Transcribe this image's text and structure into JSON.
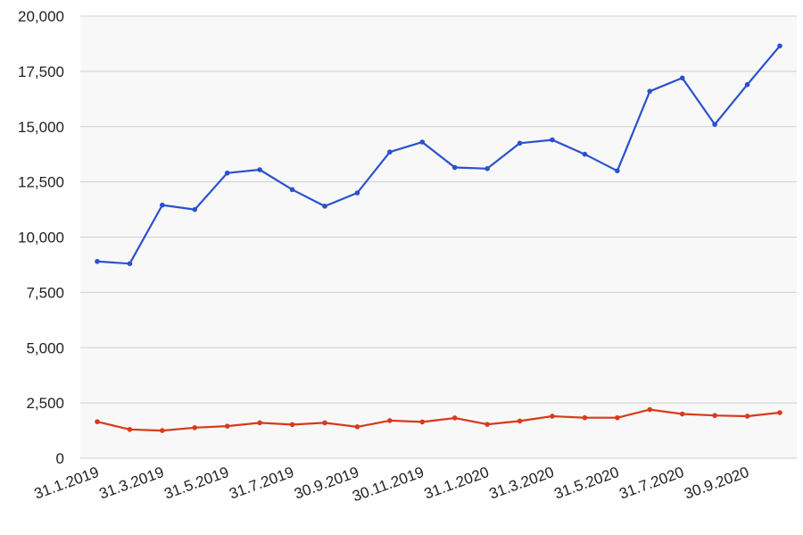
{
  "chart_data": {
    "type": "line",
    "x": [
      "31.1.2019",
      "28.2.2019",
      "31.3.2019",
      "30.4.2019",
      "31.5.2019",
      "30.6.2019",
      "31.7.2019",
      "31.8.2019",
      "30.9.2019",
      "31.10.2019",
      "30.11.2019",
      "31.12.2019",
      "31.1.2020",
      "29.2.2020",
      "31.3.2020",
      "30.4.2020",
      "31.5.2020",
      "30.6.2020",
      "31.7.2020",
      "31.8.2020",
      "30.9.2020",
      "31.10.2020"
    ],
    "x_tick_labels": [
      "31.1.2019",
      "31.3.2019",
      "31.5.2019",
      "31.7.2019",
      "30.9.2019",
      "30.11.2019",
      "31.1.2020",
      "31.3.2020",
      "31.5.2020",
      "31.7.2020",
      "30.9.2020"
    ],
    "y_tick_labels": [
      "0",
      "2,500",
      "5,000",
      "7,500",
      "10,000",
      "12,500",
      "15,000",
      "17,500",
      "20,000"
    ],
    "ylim": [
      0,
      20000
    ],
    "series": [
      {
        "color": "#2a52cc",
        "values": [
          8900,
          8800,
          11450,
          11250,
          12900,
          13050,
          12150,
          11400,
          12000,
          13850,
          14300,
          13150,
          13100,
          14250,
          14400,
          13750,
          13000,
          16600,
          17200,
          15100,
          16900,
          18650
        ]
      },
      {
        "color": "#d93a1a",
        "values": [
          1650,
          1300,
          1250,
          1380,
          1450,
          1600,
          1520,
          1600,
          1420,
          1700,
          1640,
          1820,
          1530,
          1680,
          1900,
          1830,
          1830,
          2200,
          2000,
          1930,
          1900,
          2060
        ]
      }
    ],
    "grid": true,
    "plot_background": "#f8f8f8",
    "gridline_color": "#cfcfcf",
    "title": "",
    "xlabel": "",
    "ylabel": ""
  }
}
